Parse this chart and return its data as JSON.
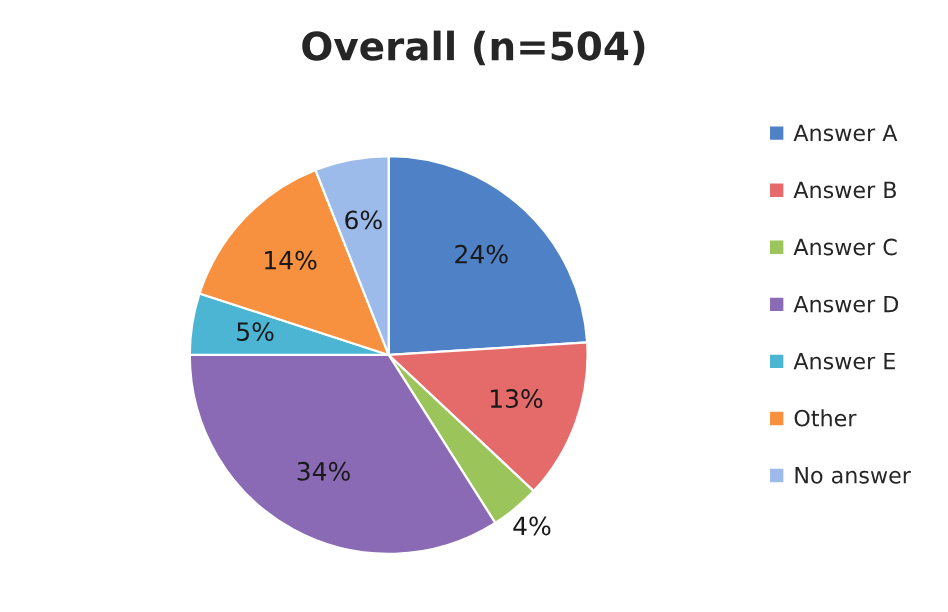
{
  "chart_data": {
    "type": "pie",
    "title": "Overall (n=504)",
    "categories": [
      "Answer A",
      "Answer B",
      "Answer C",
      "Answer D",
      "Answer E",
      "Other",
      "No answer"
    ],
    "values": [
      24,
      13,
      4,
      34,
      5,
      14,
      6
    ],
    "value_labels": [
      "24%",
      "13%",
      "4%",
      "34%",
      "5%",
      "14%",
      "6%"
    ],
    "colors": [
      "#4f81c7",
      "#e56b6b",
      "#9bc45a",
      "#8a6ab5",
      "#4bb5d3",
      "#f7913f",
      "#9dbbea"
    ],
    "legend": "right"
  }
}
